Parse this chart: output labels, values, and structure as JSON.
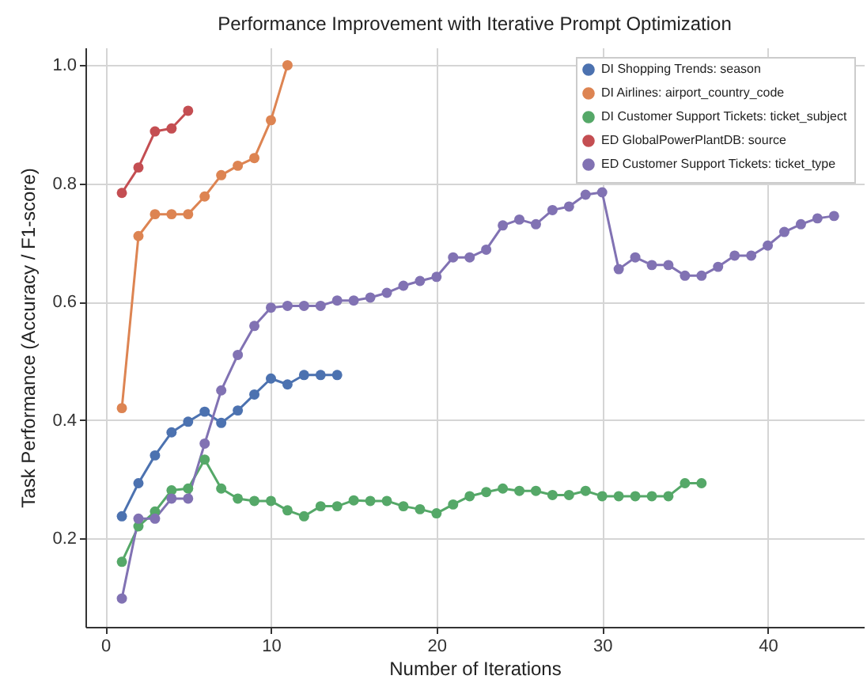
{
  "chart_data": {
    "type": "line",
    "title": "Performance Improvement with Iterative Prompt Optimization",
    "xlabel": "Number of Iterations",
    "ylabel": "Task Performance (Accuracy / F1-score)",
    "xlim": [
      -1.2,
      45.8
    ],
    "ylim": [
      0.05,
      1.03
    ],
    "xticks": [
      0,
      10,
      20,
      30,
      40
    ],
    "yticks": [
      0.2,
      0.4,
      0.6,
      0.8,
      {
        "value": 1.0,
        "label": "1.0"
      }
    ],
    "grid": true,
    "legend": "top right",
    "marker": "circle",
    "line_style": "solid",
    "series": [
      {
        "name": "DI Shopping Trends: season",
        "color": "#4c72b0",
        "x": [
          1,
          2,
          3,
          4,
          5,
          6,
          7,
          8,
          9,
          10,
          11,
          12,
          13,
          14
        ],
        "values": [
          0.237,
          0.293,
          0.34,
          0.379,
          0.397,
          0.414,
          0.395,
          0.416,
          0.443,
          0.47,
          0.46,
          0.476,
          0.476,
          0.476
        ]
      },
      {
        "name": "DI Airlines: airport_country_code",
        "color": "#dd8452",
        "x": [
          1,
          2,
          3,
          4,
          5,
          6,
          7,
          8,
          9,
          10,
          11
        ],
        "values": [
          0.42,
          0.711,
          0.748,
          0.748,
          0.748,
          0.778,
          0.814,
          0.83,
          0.843,
          0.907,
          1.0
        ]
      },
      {
        "name": "DI Customer Support Tickets: ticket_subject",
        "color": "#55a868",
        "x": [
          1,
          2,
          3,
          4,
          5,
          6,
          7,
          8,
          9,
          10,
          11,
          12,
          13,
          14,
          15,
          16,
          17,
          18,
          19,
          20,
          21,
          22,
          23,
          24,
          25,
          26,
          27,
          28,
          29,
          30,
          31,
          32,
          33,
          34,
          35,
          36
        ],
        "values": [
          0.16,
          0.22,
          0.245,
          0.281,
          0.284,
          0.333,
          0.284,
          0.267,
          0.263,
          0.263,
          0.247,
          0.237,
          0.254,
          0.254,
          0.264,
          0.263,
          0.263,
          0.254,
          0.249,
          0.242,
          0.257,
          0.271,
          0.278,
          0.284,
          0.28,
          0.28,
          0.273,
          0.273,
          0.28,
          0.271,
          0.271,
          0.271,
          0.271,
          0.271,
          0.293,
          0.293
        ]
      },
      {
        "name": "ED GlobalPowerPlantDB: source",
        "color": "#c44e52",
        "x": [
          1,
          2,
          3,
          4,
          5
        ],
        "values": [
          0.784,
          0.827,
          0.888,
          0.893,
          0.923
        ]
      },
      {
        "name": "ED Customer Support Tickets: ticket_type",
        "color": "#8172b3",
        "x": [
          1,
          2,
          3,
          4,
          5,
          6,
          7,
          8,
          9,
          10,
          11,
          12,
          13,
          14,
          15,
          16,
          17,
          18,
          19,
          20,
          21,
          22,
          23,
          24,
          25,
          26,
          27,
          28,
          29,
          30,
          31,
          32,
          33,
          34,
          35,
          36,
          37,
          38,
          39,
          40,
          41,
          42,
          43,
          44
        ],
        "values": [
          0.098,
          0.233,
          0.233,
          0.267,
          0.267,
          0.36,
          0.45,
          0.51,
          0.559,
          0.59,
          0.593,
          0.593,
          0.593,
          0.602,
          0.602,
          0.607,
          0.615,
          0.627,
          0.635,
          0.642,
          0.675,
          0.675,
          0.688,
          0.729,
          0.739,
          0.731,
          0.755,
          0.761,
          0.781,
          0.785,
          0.655,
          0.675,
          0.662,
          0.662,
          0.644,
          0.644,
          0.659,
          0.678,
          0.678,
          0.695,
          0.718,
          0.731,
          0.741,
          0.745
        ]
      }
    ]
  }
}
